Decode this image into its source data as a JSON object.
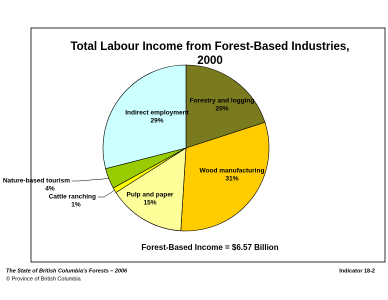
{
  "chart_data": {
    "type": "pie",
    "title": [
      "Total Labour Income from Forest-Based Industries,",
      "2000"
    ],
    "categories": [
      "Forestry and logging",
      "Wood manufacturing",
      "Pulp and paper",
      "Cattle ranching",
      "Nature-based tourism",
      "Indirect employment"
    ],
    "values": [
      20,
      31,
      15,
      1,
      4,
      29
    ],
    "value_labels": [
      "20%",
      "31%",
      "15%",
      "1%",
      "4%",
      "29%"
    ],
    "colors": [
      "#7a7a1e",
      "#ffcc00",
      "#ffff99",
      "#ffff00",
      "#99cc00",
      "#ccffff"
    ],
    "note": "Forest-Based Income = $6.57 Billion"
  },
  "footer": {
    "source": [
      "The State of British Columbia's Forests – 2006",
      "© Province of British Columbia"
    ],
    "indicator": "Indicator 18-2"
  }
}
